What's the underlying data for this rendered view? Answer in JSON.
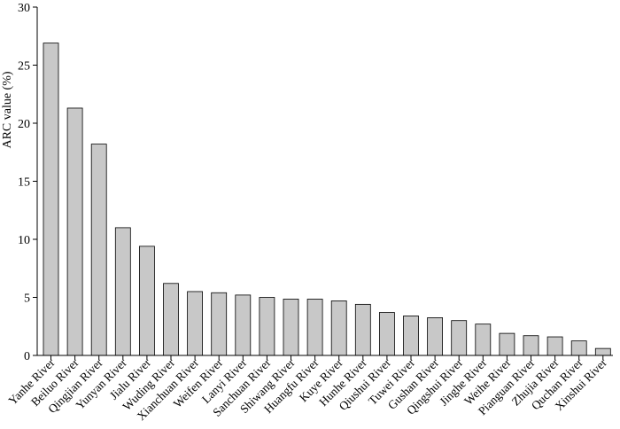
{
  "chart_data": {
    "type": "bar",
    "title": "",
    "xlabel": "",
    "ylabel": "ARC value  (%)",
    "ylim": [
      0,
      30
    ],
    "yticks": [
      0,
      5,
      10,
      15,
      20,
      25,
      30
    ],
    "grid": false,
    "categories": [
      "Yanhe River",
      "Beiluo River",
      "Qingjian River",
      "Yunyan River",
      "Jialu River",
      "Wuding River",
      "Xianchuan River",
      "Weifen River",
      "Lanyi River",
      "Sanchuan River",
      "Shiwang River",
      "Huangfu River",
      "Kuye River",
      "Hunhe River",
      "Qiushui River",
      "Tuwei River",
      "Gushan River",
      "Qingshui River",
      "Jinghe River",
      "Weihe River",
      "Pianguan River",
      "Zhujia River",
      "Quchan River",
      "Xinshui River"
    ],
    "values": [
      26.9,
      21.3,
      18.2,
      11.0,
      9.4,
      6.2,
      5.5,
      5.4,
      5.2,
      5.0,
      4.85,
      4.85,
      4.7,
      4.4,
      3.7,
      3.4,
      3.25,
      3.0,
      2.7,
      1.9,
      1.7,
      1.6,
      1.25,
      0.6
    ]
  }
}
